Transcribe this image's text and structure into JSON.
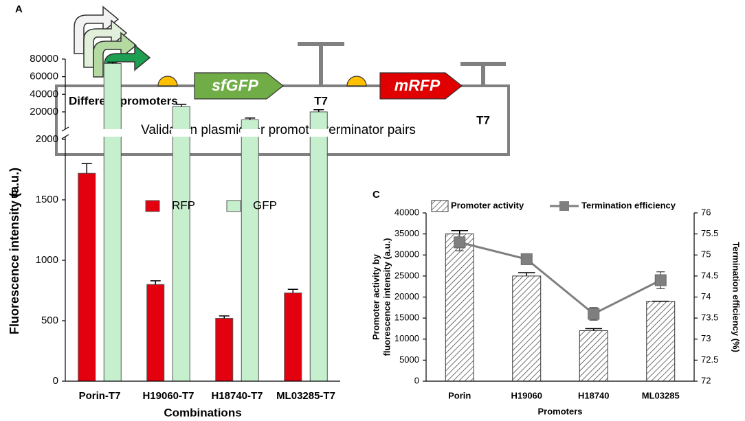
{
  "panel_labels": [
    "A",
    "B",
    "C"
  ],
  "diagram": {
    "promoters_label": "Different promoters",
    "gene1": "sfGFP",
    "terminator1": "T7",
    "gene2": "mRFP",
    "terminator2": "T7",
    "plasmid_label": "Validation plasmid for promoter-terminator pairs"
  },
  "chart_data": [
    {
      "type": "bar",
      "categories": [
        "Porin-T7",
        "H19060-T7",
        "H18740-T7",
        "ML03285-T7"
      ],
      "xlabel": "Combinations",
      "ylabel": "Fluorescence intensity (a.u.)",
      "series": [
        {
          "name": "RFP",
          "type": "bar",
          "color": "#e3000f",
          "values": [
            1720,
            800,
            520,
            730
          ],
          "errors": [
            80,
            30,
            20,
            30
          ]
        },
        {
          "name": "GFP",
          "type": "bar",
          "color": "#c6efce",
          "values": [
            75000,
            26000,
            11000,
            20000
          ],
          "errors": [
            1500,
            2500,
            2000,
            2500
          ]
        }
      ],
      "ylim": [
        0,
        2000
      ],
      "yticks": [
        0,
        500,
        1000,
        1500,
        2000
      ],
      "ylim_upper": [
        2000,
        80000
      ],
      "yticks_upper": [
        20000,
        40000,
        60000,
        80000
      ],
      "grid": false
    },
    {
      "type": "bar",
      "categories": [
        "Porin",
        "H19060",
        "H18740",
        "ML03285"
      ],
      "xlabel": "Promoters",
      "ylabel": [
        "Promoter activity by",
        "fluorescence intensity (a.u.)"
      ],
      "y2label": "Termination efficiency (%)",
      "series": [
        {
          "name": "Promoter activity",
          "type": "bar",
          "color": "#333333",
          "hatch": true,
          "values": [
            35000,
            25000,
            12000,
            19000
          ],
          "errors": [
            800,
            800,
            500,
            0
          ]
        },
        {
          "name": "Termination efficiency",
          "type": "line",
          "axis": "y2",
          "color": "#7f7f7f",
          "values": [
            75.3,
            74.9,
            73.6,
            74.4
          ],
          "errors": [
            0.2,
            0.1,
            0.15,
            0.2
          ]
        }
      ],
      "ylim": [
        0,
        40000
      ],
      "yticks": [
        0,
        5000,
        10000,
        15000,
        20000,
        25000,
        30000,
        35000,
        40000
      ],
      "y2lim": [
        72,
        76
      ],
      "y2ticks": [
        72,
        72.5,
        73,
        73.5,
        74,
        74.5,
        75,
        75.5,
        76
      ],
      "grid": false
    }
  ]
}
